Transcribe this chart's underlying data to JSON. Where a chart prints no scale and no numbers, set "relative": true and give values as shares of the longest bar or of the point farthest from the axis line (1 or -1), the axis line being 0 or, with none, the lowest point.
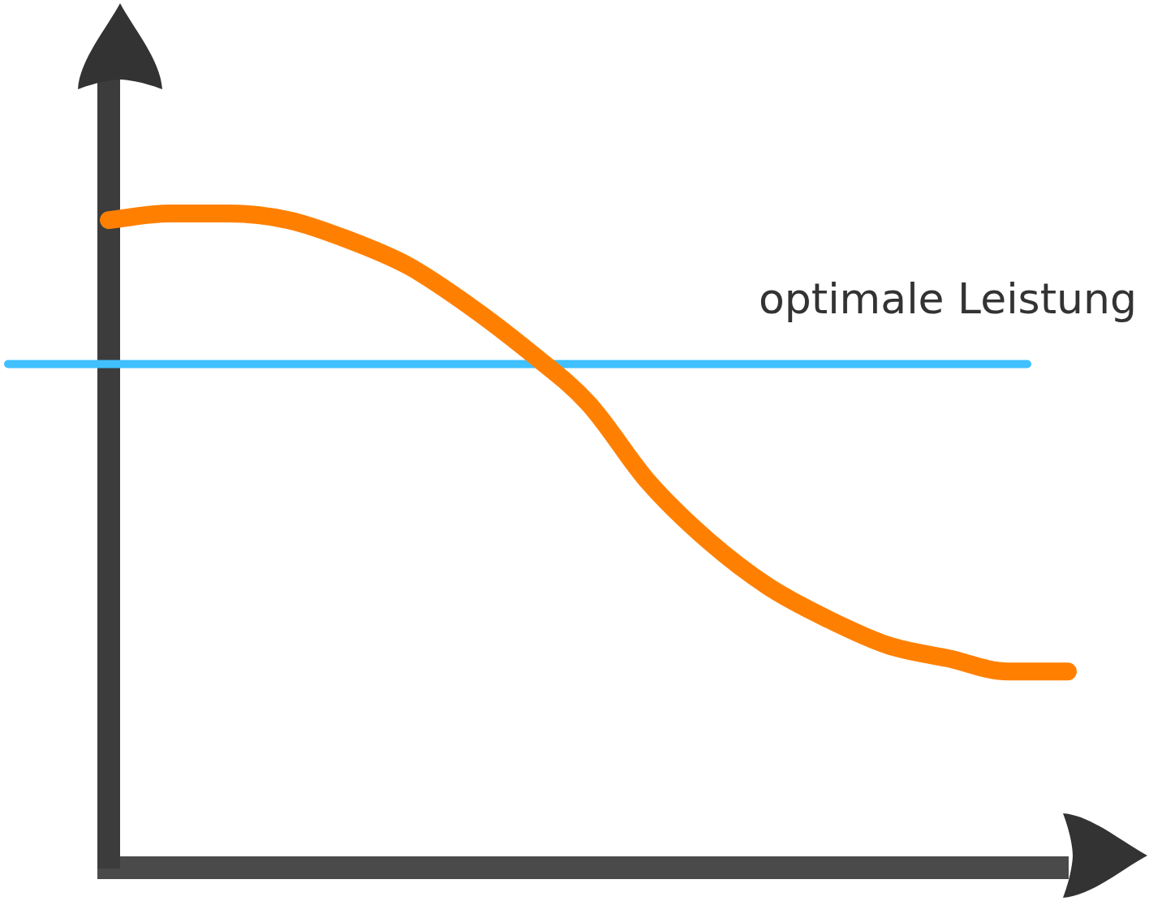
{
  "chart_data": {
    "type": "line",
    "relative": true,
    "tick_labels": false,
    "grid": false,
    "legend": false,
    "marker": "none",
    "line_style": "solid",
    "categories": [
      null,
      null,
      null,
      null,
      null,
      null,
      null,
      null,
      null,
      null,
      null,
      null,
      null,
      null,
      null,
      null,
      null
    ],
    "series": [
      {
        "color": "#ff8000",
        "values": [
          0.99,
          1.0,
          1.0,
          0.99,
          0.96,
          0.92,
          0.86,
          0.79,
          0.71,
          0.59,
          0.5,
          0.43,
          0.38,
          0.34,
          0.32,
          0.3,
          0.3
        ]
      }
    ],
    "ref_lines": [
      {
        "axis": "y",
        "value": 0.77,
        "label": "optimale Leistung",
        "color": "#40c0ff",
        "line_style": "solid"
      }
    ]
  }
}
